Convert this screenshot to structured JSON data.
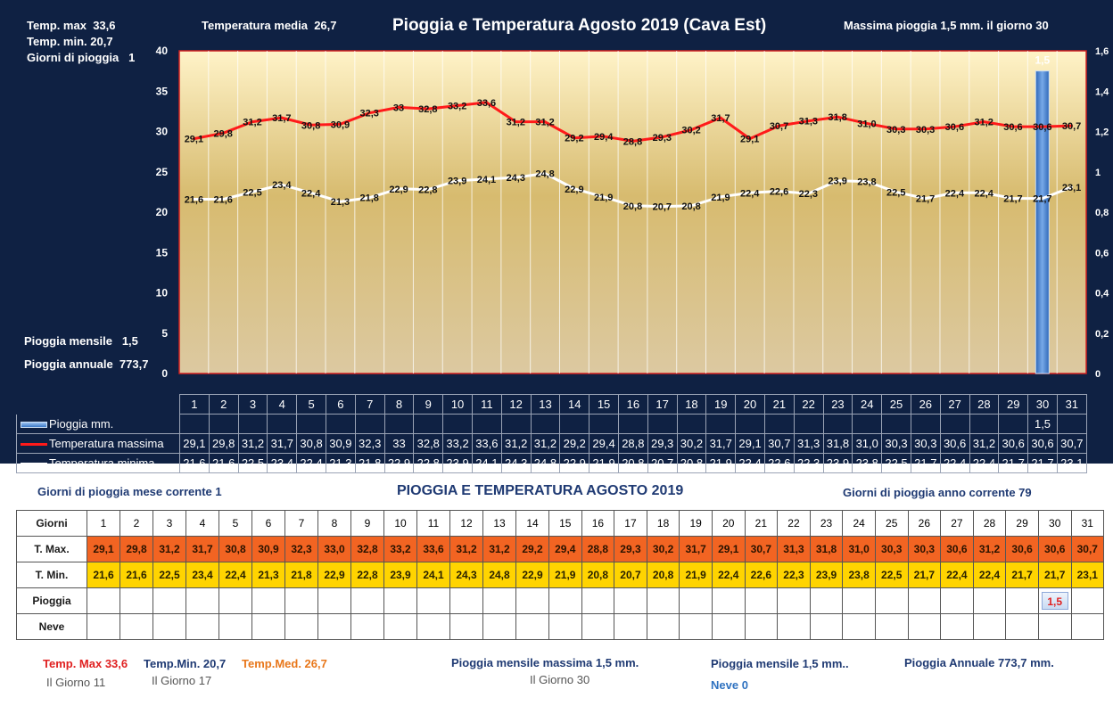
{
  "chart_data": {
    "type": "line",
    "title": "Pioggia e Temperatura Agosto 2019 (Cava Est)",
    "categories": [
      "1",
      "2",
      "3",
      "4",
      "5",
      "6",
      "7",
      "8",
      "9",
      "10",
      "11",
      "12",
      "13",
      "14",
      "15",
      "16",
      "17",
      "18",
      "19",
      "20",
      "21",
      "22",
      "23",
      "24",
      "25",
      "26",
      "27",
      "28",
      "29",
      "30",
      "31"
    ],
    "ylim": [
      0,
      40
    ],
    "y_ticks": [
      "0",
      "5",
      "10",
      "15",
      "20",
      "25",
      "30",
      "35",
      "40"
    ],
    "y2lim": [
      0,
      1.6
    ],
    "y2_ticks": [
      "0",
      "0,2",
      "0,4",
      "0,6",
      "0,8",
      "1",
      "1,2",
      "1,4",
      "1,6"
    ],
    "grid": true,
    "series": [
      {
        "name": "Pioggia mm.",
        "type": "bar",
        "axis": "right",
        "color": "#4a86d4",
        "values": [
          null,
          null,
          null,
          null,
          null,
          null,
          null,
          null,
          null,
          null,
          null,
          null,
          null,
          null,
          null,
          null,
          null,
          null,
          null,
          null,
          null,
          null,
          null,
          null,
          null,
          null,
          null,
          null,
          null,
          1.5,
          null
        ],
        "labels": [
          "",
          "",
          "",
          "",
          "",
          "",
          "",
          "",
          "",
          "",
          "",
          "",
          "",
          "",
          "",
          "",
          "",
          "",
          "",
          "",
          "",
          "",
          "",
          "",
          "",
          "",
          "",
          "",
          "",
          "1,5",
          ""
        ]
      },
      {
        "name": "Temperatura massima",
        "type": "line",
        "axis": "left",
        "color": "#ff1a1a",
        "values": [
          29.1,
          29.8,
          31.2,
          31.7,
          30.8,
          30.9,
          32.3,
          33,
          32.8,
          33.2,
          33.6,
          31.2,
          31.2,
          29.2,
          29.4,
          28.8,
          29.3,
          30.2,
          31.7,
          29.1,
          30.7,
          31.3,
          31.8,
          31.0,
          30.3,
          30.3,
          30.6,
          31.2,
          30.6,
          30.6,
          30.7
        ],
        "labels": [
          "29,1",
          "29,8",
          "31,2",
          "31,7",
          "30,8",
          "30,9",
          "32,3",
          "33",
          "32,8",
          "33,2",
          "33,6",
          "31,2",
          "31,2",
          "29,2",
          "29,4",
          "28,8",
          "29,3",
          "30,2",
          "31,7",
          "29,1",
          "30,7",
          "31,3",
          "31,8",
          "31,0",
          "30,3",
          "30,3",
          "30,6",
          "31,2",
          "30,6",
          "30,6",
          "30,7"
        ]
      },
      {
        "name": "Temperatura minima",
        "type": "line",
        "axis": "left",
        "color": "#ffffff",
        "values": [
          21.6,
          21.6,
          22.5,
          23.4,
          22.4,
          21.3,
          21.8,
          22.9,
          22.8,
          23.9,
          24.1,
          24.3,
          24.8,
          22.9,
          21.9,
          20.8,
          20.7,
          20.8,
          21.9,
          22.4,
          22.6,
          22.3,
          23.9,
          23.8,
          22.5,
          21.7,
          22.4,
          22.4,
          21.7,
          21.7,
          23.1
        ],
        "labels": [
          "21,6",
          "21,6",
          "22,5",
          "23,4",
          "22,4",
          "21,3",
          "21,8",
          "22,9",
          "22,8",
          "23,9",
          "24,1",
          "24,3",
          "24,8",
          "22,9",
          "21,9",
          "20,8",
          "20,7",
          "20,8",
          "21,9",
          "22,4",
          "22,6",
          "22,3",
          "23,9",
          "23,8",
          "22,5",
          "21,7",
          "22,4",
          "22,4",
          "21,7",
          "21,7",
          "23,1"
        ]
      }
    ]
  },
  "header": {
    "tmax_label": "Temp. max",
    "tmax_value": "33,6",
    "tmin_label": "Temp.  min.",
    "tmin_value": "20,7",
    "rain_days_label": "Giorni  di pioggia",
    "rain_days_value": "1",
    "tmed_label": "Temperatura media",
    "tmed_value": "26,7",
    "max_rain_text": "Massima pioggia  1,5   mm. il giorno   30",
    "monthly_rain_label": "Pioggia mensile",
    "monthly_rain_value": "1,5",
    "annual_rain_label": "Pioggia annuale",
    "annual_rain_value": "773,7"
  },
  "summary": {
    "title": "PIOGGIA E TEMPERATURA AGOSTO 2019",
    "rain_days_month": "Giorni di pioggia mese corrente   1",
    "rain_days_year": "Giorni di pioggia anno corrente  79",
    "col_header": "Giorni",
    "row_tmax": "T. Max.",
    "row_tmin": "T. Min.",
    "row_rain": "Pioggia",
    "row_snow": "Neve",
    "days": [
      "1",
      "2",
      "3",
      "4",
      "5",
      "6",
      "7",
      "8",
      "9",
      "10",
      "11",
      "12",
      "13",
      "14",
      "15",
      "16",
      "17",
      "18",
      "19",
      "20",
      "21",
      "22",
      "23",
      "24",
      "25",
      "26",
      "27",
      "28",
      "29",
      "30",
      "31"
    ],
    "tmax": [
      "29,1",
      "29,8",
      "31,2",
      "31,7",
      "30,8",
      "30,9",
      "32,3",
      "33,0",
      "32,8",
      "33,2",
      "33,6",
      "31,2",
      "31,2",
      "29,2",
      "29,4",
      "28,8",
      "29,3",
      "30,2",
      "31,7",
      "29,1",
      "30,7",
      "31,3",
      "31,8",
      "31,0",
      "30,3",
      "30,3",
      "30,6",
      "31,2",
      "30,6",
      "30,6",
      "30,7"
    ],
    "tmin": [
      "21,6",
      "21,6",
      "22,5",
      "23,4",
      "22,4",
      "21,3",
      "21,8",
      "22,9",
      "22,8",
      "23,9",
      "24,1",
      "24,3",
      "24,8",
      "22,9",
      "21,9",
      "20,8",
      "20,7",
      "20,8",
      "21,9",
      "22,4",
      "22,6",
      "22,3",
      "23,9",
      "23,8",
      "22,5",
      "21,7",
      "22,4",
      "22,4",
      "21,7",
      "21,7",
      "23,1"
    ],
    "rain": [
      "",
      "",
      "",
      "",
      "",
      "",
      "",
      "",
      "",
      "",
      "",
      "",
      "",
      "",
      "",
      "",
      "",
      "",
      "",
      "",
      "",
      "",
      "",
      "",
      "",
      "",
      "",
      "",
      "",
      "1,5",
      ""
    ],
    "snow": [
      "",
      "",
      "",
      "",
      "",
      "",
      "",
      "",
      "",
      "",
      "",
      "",
      "",
      "",
      "",
      "",
      "",
      "",
      "",
      "",
      "",
      "",
      "",
      "",
      "",
      "",
      "",
      "",
      "",
      "",
      ""
    ]
  },
  "footer": {
    "tmax_text": "Temp. Max 33,6",
    "tmax_day": "Il Giorno  11",
    "tmin_text": "Temp.Min.  20,7",
    "tmin_day": "Il Giorno 17",
    "tmed_text": "Temp.Med. 26,7",
    "max_rain_text": "Pioggia mensile massima 1,5      mm.",
    "max_rain_day": "Il Giorno 30",
    "monthly_rain_text": "Pioggia mensile  1,5        mm..",
    "snow_text": "Neve 0",
    "annual_rain_text": "Pioggia Annuale  773,7    mm."
  },
  "colors": {
    "background": "#0f2143",
    "tmax_line": "#ff1a1a",
    "tmin_line": "#ffffff",
    "rain_bar": "#4a86d4",
    "tmax_cell": "#f26422",
    "tmin_cell": "#ffd400",
    "footer_red": "#e02020",
    "footer_orange": "#e8771a",
    "footer_navy": "#1f3a73",
    "footer_blue": "#2f72c0"
  }
}
